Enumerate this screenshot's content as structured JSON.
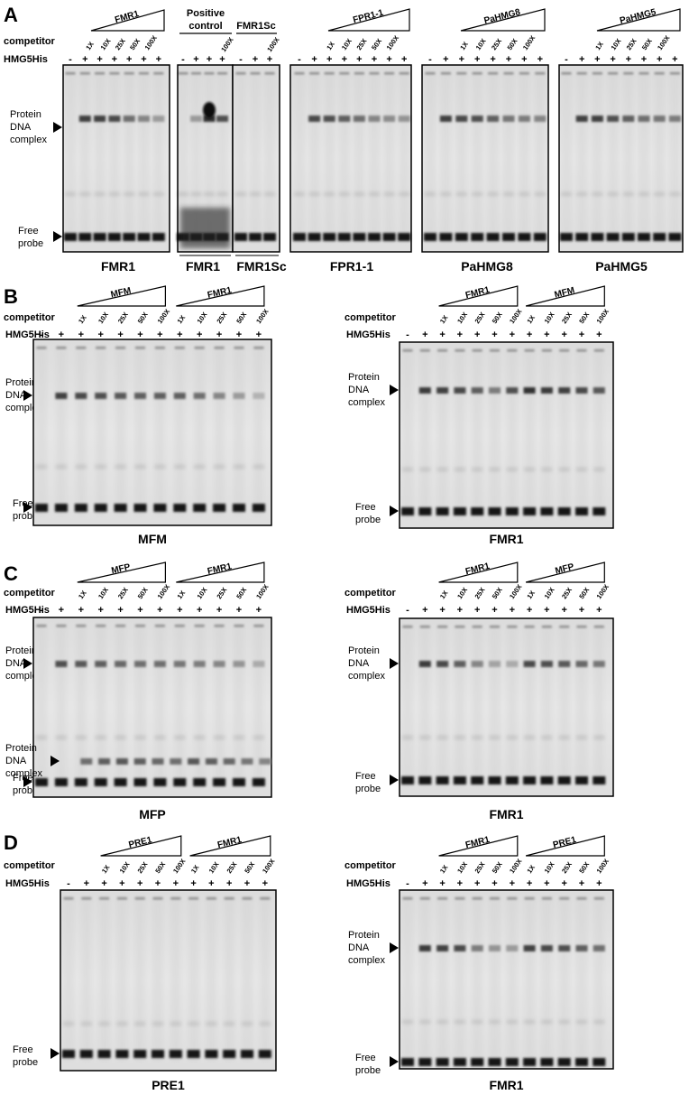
{
  "figure": {
    "panels": [
      {
        "letter": "A",
        "row_labels": {
          "competitor": "competitor",
          "hmg5his": "HMG5His"
        },
        "lane_markers": {
          "minus": "-",
          "plus": "+"
        },
        "band_labels": {
          "complex": [
            "Protein",
            "DNA",
            "complex"
          ],
          "free": [
            "Free",
            "probe"
          ]
        },
        "positive_control": [
          "Positive",
          "control"
        ],
        "gels": [
          {
            "title": "FMR1",
            "groups": [
              {
                "label": "FMR1",
                "doses": [
                  "1X",
                  "10X",
                  "25X",
                  "50X",
                  "100X"
                ]
              }
            ]
          },
          {
            "title": "FMR1",
            "groups": [
              {
                "label": "",
                "doses": [
                  "100X"
                ]
              }
            ]
          },
          {
            "title": "FMR1Sc",
            "groups": [
              {
                "label": "FMR1Sc",
                "doses": [
                  "100X"
                ]
              }
            ]
          },
          {
            "title": "FPR1-1",
            "groups": [
              {
                "label": "FPR1-1",
                "doses": [
                  "1X",
                  "10X",
                  "25X",
                  "50X",
                  "100X"
                ]
              }
            ]
          },
          {
            "title": "PaHMG8",
            "groups": [
              {
                "label": "PaHMG8",
                "doses": [
                  "1X",
                  "10X",
                  "25X",
                  "50X",
                  "100X"
                ]
              }
            ]
          },
          {
            "title": "PaHMG5",
            "groups": [
              {
                "label": "PaHMG5",
                "doses": [
                  "1X",
                  "10X",
                  "25X",
                  "50X",
                  "100X"
                ]
              }
            ]
          }
        ]
      },
      {
        "letter": "B",
        "row_labels": {
          "competitor": "competitor",
          "hmg5his": "HMG5His"
        },
        "band_labels": {
          "complex": [
            "Protein",
            "DNA",
            "complex"
          ],
          "free": [
            "Free",
            "probe"
          ]
        },
        "gels": [
          {
            "title": "MFM",
            "groups": [
              {
                "label": "MFM",
                "doses": [
                  "1X",
                  "10X",
                  "25X",
                  "50X",
                  "100X"
                ]
              },
              {
                "label": "FMR1",
                "doses": [
                  "1X",
                  "10X",
                  "25X",
                  "50X",
                  "100X"
                ]
              }
            ]
          },
          {
            "title": "FMR1",
            "groups": [
              {
                "label": "FMR1",
                "doses": [
                  "1X",
                  "10X",
                  "25X",
                  "50X",
                  "100X"
                ]
              },
              {
                "label": "MFM",
                "doses": [
                  "1X",
                  "10X",
                  "25X",
                  "50X",
                  "100X"
                ]
              }
            ]
          }
        ]
      },
      {
        "letter": "C",
        "row_labels": {
          "competitor": "competitor",
          "hmg5his": "HMG5His"
        },
        "band_labels": {
          "complex": [
            "Protein",
            "DNA",
            "complex"
          ],
          "free": [
            "Free",
            "probe"
          ]
        },
        "gels": [
          {
            "title": "MFP",
            "groups": [
              {
                "label": "MFP",
                "doses": [
                  "1X",
                  "10X",
                  "25X",
                  "50X",
                  "100X"
                ]
              },
              {
                "label": "FMR1",
                "doses": [
                  "1X",
                  "10X",
                  "25X",
                  "50X",
                  "100X"
                ]
              }
            ]
          },
          {
            "title": "FMR1",
            "groups": [
              {
                "label": "FMR1",
                "doses": [
                  "1X",
                  "10X",
                  "25X",
                  "50X",
                  "100X"
                ]
              },
              {
                "label": "MFP",
                "doses": [
                  "1X",
                  "10X",
                  "25X",
                  "50X",
                  "100X"
                ]
              }
            ]
          }
        ]
      },
      {
        "letter": "D",
        "row_labels": {
          "competitor": "competitor",
          "hmg5his": "HMG5His"
        },
        "band_labels": {
          "complex": [
            "Protein",
            "DNA",
            "complex"
          ],
          "free": [
            "Free",
            "probe"
          ]
        },
        "gels": [
          {
            "title": "PRE1",
            "groups": [
              {
                "label": "PRE1",
                "doses": [
                  "1X",
                  "10X",
                  "25X",
                  "50X",
                  "100X"
                ]
              },
              {
                "label": "FMR1",
                "doses": [
                  "1X",
                  "10X",
                  "25X",
                  "50X",
                  "100X"
                ]
              }
            ]
          },
          {
            "title": "FMR1",
            "groups": [
              {
                "label": "FMR1",
                "doses": [
                  "1X",
                  "10X",
                  "25X",
                  "50X",
                  "100X"
                ]
              },
              {
                "label": "PRE1",
                "doses": [
                  "1X",
                  "10X",
                  "25X",
                  "50X",
                  "100X"
                ]
              }
            ]
          }
        ]
      }
    ]
  }
}
